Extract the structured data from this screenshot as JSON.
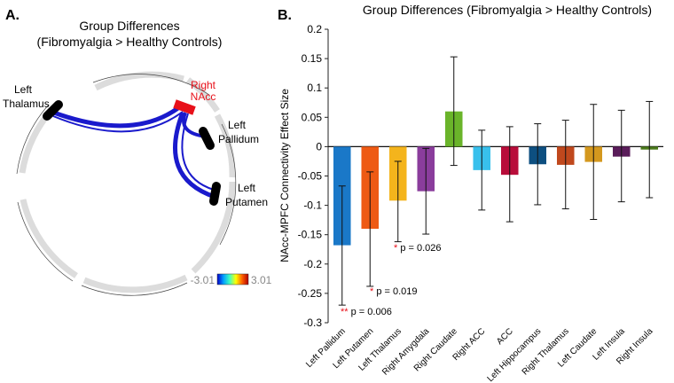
{
  "panel_a": {
    "label": "A.",
    "title_line1": "Group Differences",
    "title_line2": "(Fibromyalgia > Healthy Controls)",
    "nodes": {
      "left_thalamus": [
        "Left",
        "Thalamus"
      ],
      "right_nacc": [
        "Right",
        "NAcc"
      ],
      "left_pallidum": [
        "Left",
        "Pallidum"
      ],
      "left_putamen": [
        "Left",
        "Putamen"
      ]
    },
    "colorbar": {
      "min_label": "-3.01",
      "max_label": "3.01"
    },
    "colors": {
      "connection": "#1a1acc",
      "seed": "#e8101a",
      "node": "#000000",
      "ring": "#dcdcdc"
    }
  },
  "panel_b": {
    "label": "B."
  },
  "chart_data": {
    "type": "bar",
    "title": "Group Differences (Fibromyalgia > Healthy Controls)",
    "ylabel": "NAcc-MPFC Connectivity Effect Size",
    "xlabel": "",
    "ylim": [
      -0.3,
      0.2
    ],
    "yticks": [
      0.2,
      0.15,
      0.1,
      0.05,
      0,
      -0.05,
      -0.1,
      -0.15,
      -0.2,
      -0.25,
      -0.3
    ],
    "ytick_labels": [
      "0.2",
      "0.15",
      "0.1",
      "0.05",
      "0",
      "-0.05",
      "-0.1",
      "-0.15",
      "-0.2",
      "-0.25",
      "-0.3"
    ],
    "categories": [
      "Left Pallidum",
      "Left Putamen",
      "Left Thalamus",
      "Right Amygdala",
      "Right Caudate",
      "Right ACC",
      "ACC",
      "Left Hippocampus",
      "Right Thalamus",
      "Left Caudate",
      "Left Insula",
      "Right Insula"
    ],
    "values": [
      -0.168,
      -0.14,
      -0.092,
      -0.076,
      0.06,
      -0.04,
      -0.048,
      -0.03,
      -0.031,
      -0.026,
      -0.017,
      -0.005
    ],
    "error_low": [
      -0.27,
      -0.238,
      -0.162,
      -0.149,
      -0.032,
      -0.108,
      -0.128,
      -0.099,
      -0.106,
      -0.124,
      -0.094,
      -0.087
    ],
    "error_high": [
      -0.067,
      -0.043,
      -0.025,
      -0.003,
      0.153,
      0.028,
      0.034,
      0.039,
      0.045,
      0.072,
      0.062,
      0.077
    ],
    "colors": [
      "#1a78c8",
      "#ee5a14",
      "#f4b41c",
      "#8a3d9c",
      "#6ab42a",
      "#38c0ec",
      "#b80d3a",
      "#0d4f80",
      "#c0481d",
      "#d4981e",
      "#5a1d5a",
      "#4a7a1a"
    ],
    "annotations": [
      {
        "bar": "Left Pallidum",
        "stars": "**",
        "text": "p = 0.006"
      },
      {
        "bar": "Left Putamen",
        "stars": "*",
        "text": "p = 0.019"
      },
      {
        "bar": "Left Thalamus",
        "stars": "*",
        "text": "p = 0.026"
      }
    ],
    "star_color": "#e8101a"
  }
}
